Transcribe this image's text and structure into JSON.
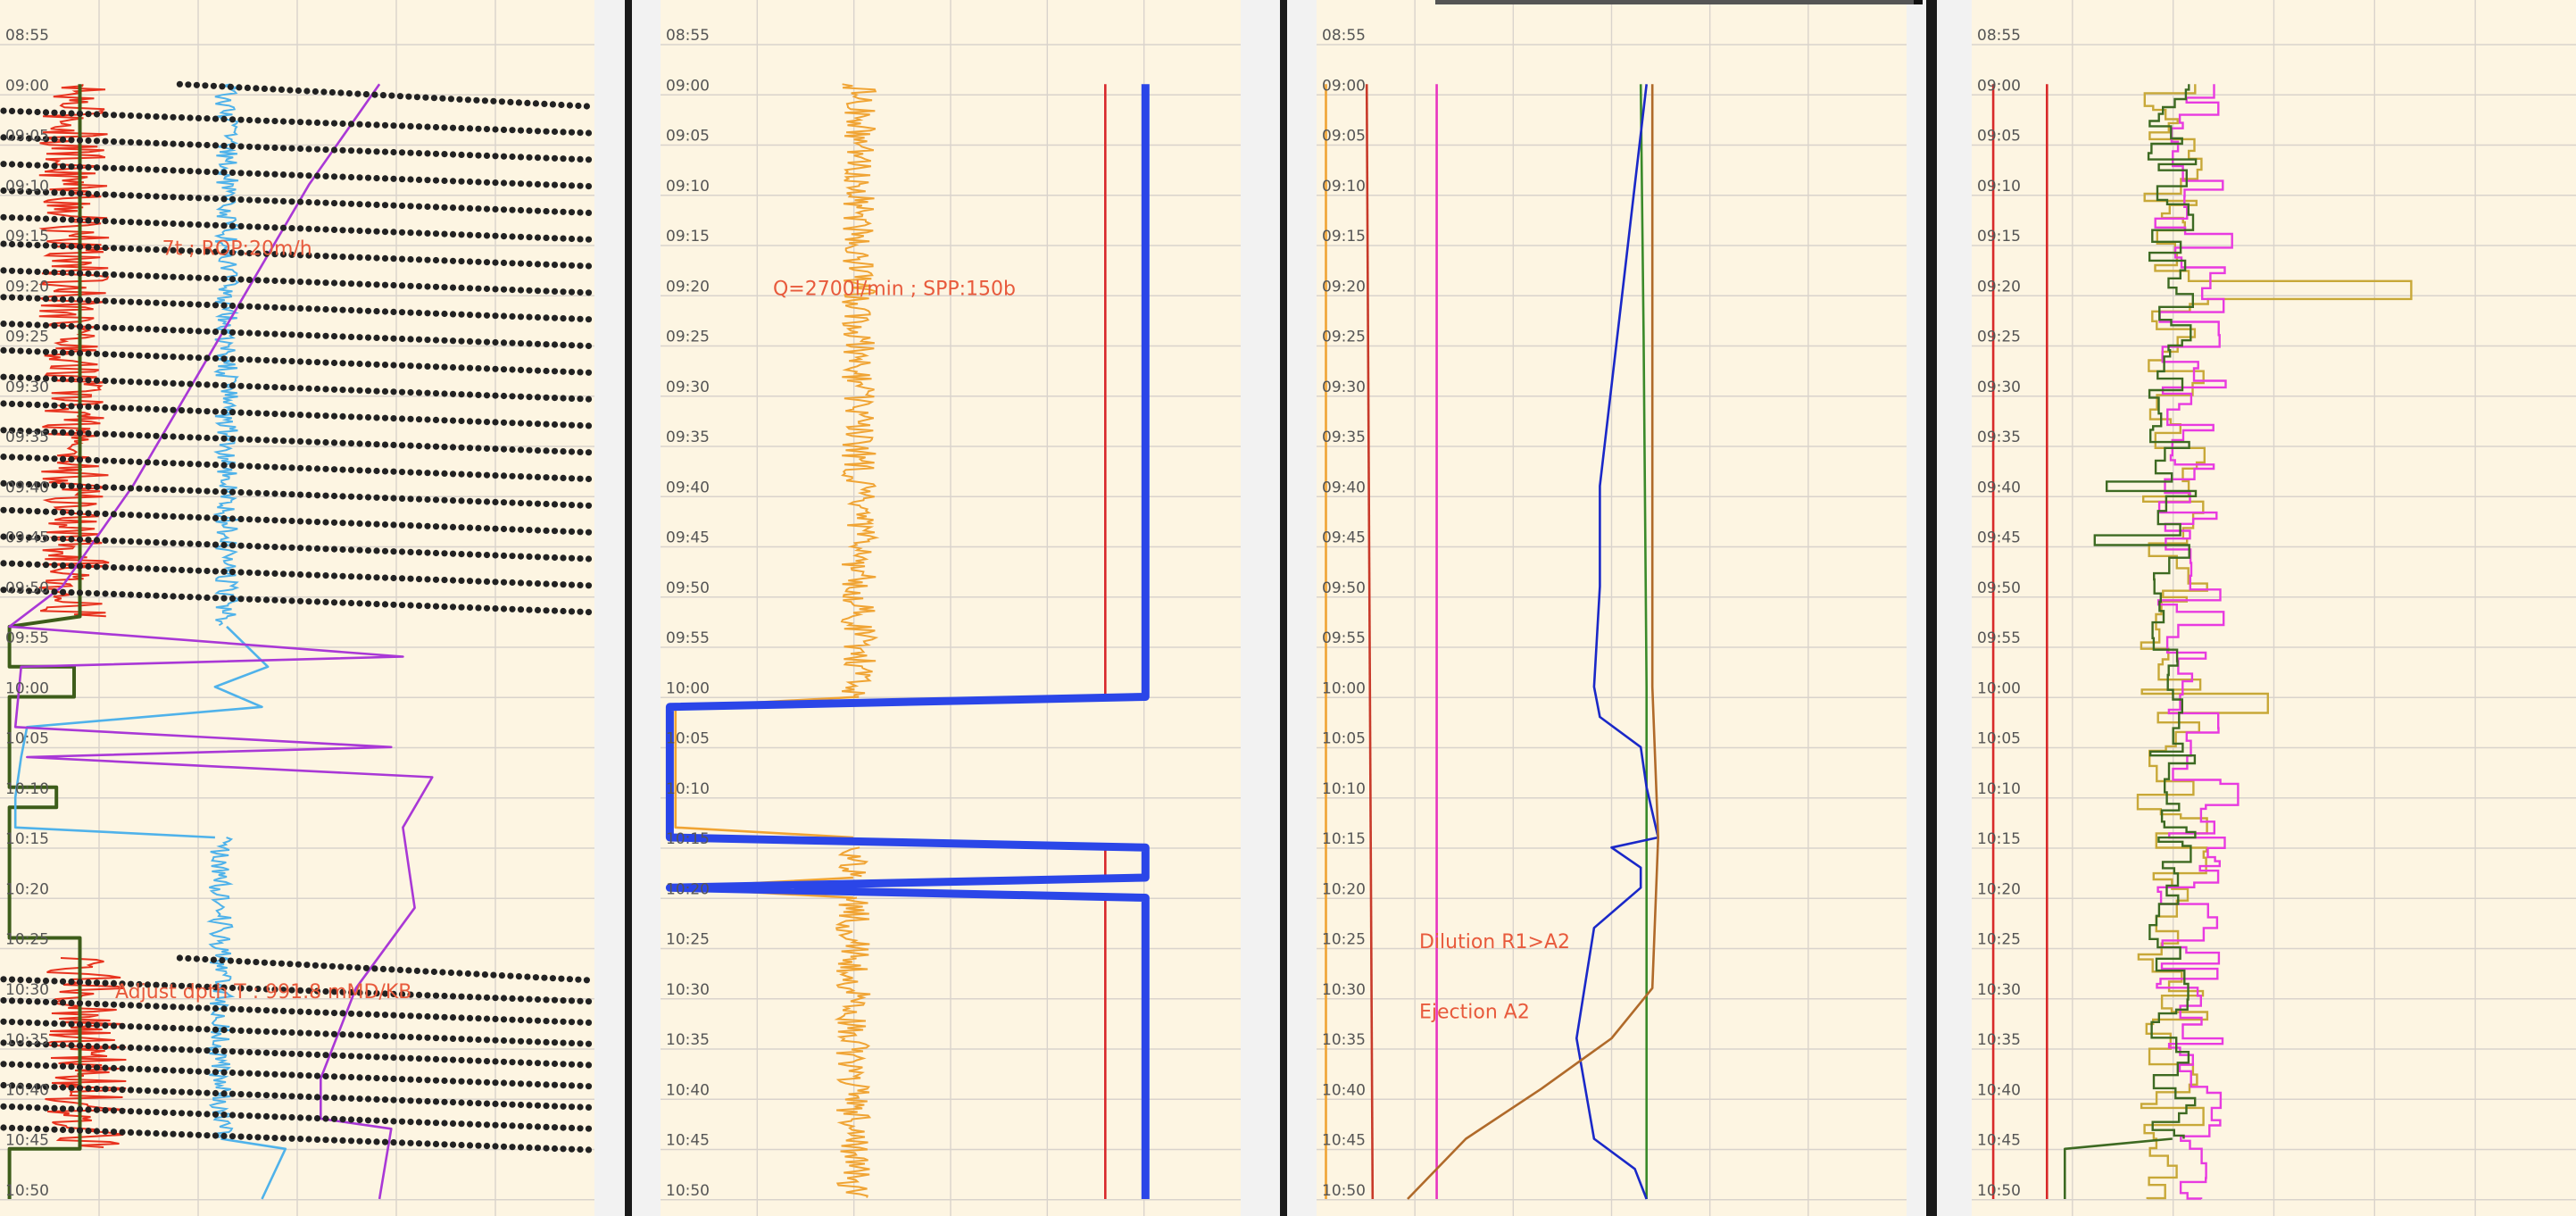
{
  "chart_data": [
    {
      "type": "line",
      "track": 1,
      "y_axis": "time",
      "ylim": [
        "08:55",
        "10:51"
      ],
      "ticks": [
        "08:55",
        "09:00",
        "09:05",
        "09:10",
        "09:15",
        "09:20",
        "09:25",
        "09:30",
        "09:35",
        "09:40",
        "09:45",
        "09:50",
        "09:55",
        "10:00",
        "10:05",
        "10:10",
        "10:15",
        "10:20",
        "10:25",
        "10:30",
        "10:35",
        "10:40",
        "10:45",
        "10:50"
      ],
      "grid": true,
      "xlim": [
        0,
        100
      ],
      "annotations": [
        {
          "text": "7t ; ROP:20m/h",
          "time": "09:17",
          "x": 27,
          "color": "#e85a3c"
        },
        {
          "text": "Adjust dpth T : 991.8 mMD/KB",
          "time": "10:31",
          "x": 19,
          "color": "#e85a3c"
        }
      ],
      "series": [
        {
          "color": "#e8321e",
          "style": "noisy",
          "segments": [
            {
              "start": "09:00",
              "end": "09:53",
              "x": 12,
              "amp": 6
            },
            {
              "start": "10:27",
              "end": "10:46",
              "x": 14,
              "amp": 7
            }
          ]
        },
        {
          "color": "#3d5d1a",
          "style": "step",
          "points": [
            [
              "09:00",
              13
            ],
            [
              "09:53",
              13
            ],
            [
              "09:54",
              1
            ],
            [
              "09:58",
              1
            ],
            [
              "09:58",
              12
            ],
            [
              "10:01",
              12
            ],
            [
              "10:01",
              1
            ],
            [
              "10:10",
              1
            ],
            [
              "10:10",
              9
            ],
            [
              "10:12",
              9
            ],
            [
              "10:12",
              1
            ],
            [
              "10:25",
              1
            ],
            [
              "10:25",
              13
            ],
            [
              "10:46",
              13
            ],
            [
              "10:46",
              1
            ],
            [
              "10:51",
              1
            ]
          ]
        },
        {
          "color": "#4fb2ea",
          "style": "noisy",
          "segments": [
            {
              "start": "09:00",
              "end": "09:54",
              "x": 38,
              "amp": 2
            },
            {
              "start": "10:15",
              "end": "10:45",
              "x": 37,
              "amp": 2
            }
          ]
        },
        {
          "color": "#4fb2ea",
          "style": "line",
          "points": [
            [
              "09:54",
              38
            ],
            [
              "09:58",
              45
            ],
            [
              "10:00",
              36
            ],
            [
              "10:02",
              44
            ],
            [
              "10:04",
              4
            ],
            [
              "10:07",
              3
            ],
            [
              "10:11",
              2
            ],
            [
              "10:14",
              2
            ],
            [
              "10:15",
              36
            ]
          ]
        },
        {
          "color": "#4fb2ea",
          "style": "line",
          "points": [
            [
              "10:45",
              37
            ],
            [
              "10:46",
              48
            ],
            [
              "10:51",
              44
            ]
          ]
        },
        {
          "color": "#a938d6",
          "style": "line",
          "points": [
            [
              "09:00",
              64
            ],
            [
              "09:10",
              52
            ],
            [
              "09:20",
              42
            ],
            [
              "09:30",
              32
            ],
            [
              "09:40",
              22
            ],
            [
              "09:50",
              10
            ],
            [
              "09:54",
              1
            ],
            [
              "09:57",
              68
            ],
            [
              "09:58",
              3
            ],
            [
              "10:04",
              2
            ],
            [
              "10:06",
              66
            ],
            [
              "10:07",
              4
            ],
            [
              "10:09",
              73
            ],
            [
              "10:14",
              68
            ],
            [
              "10:22",
              70
            ],
            [
              "10:30",
              60
            ],
            [
              "10:39",
              54
            ],
            [
              "10:43",
              54
            ],
            [
              "10:44",
              66
            ],
            [
              "10:51",
              64
            ]
          ]
        },
        {
          "color": "#222222",
          "style": "dots",
          "segments": [
            {
              "start": "09:00",
              "end": "09:53",
              "rows": 20,
              "xstart": 0,
              "xend": 100,
              "slope": 2.5
            },
            {
              "start": "10:27",
              "end": "10:46",
              "rows": 9,
              "xstart": 0,
              "xend": 100,
              "slope": 2.5
            }
          ]
        }
      ]
    },
    {
      "type": "line",
      "track": 2,
      "y_axis": "time",
      "ylim": [
        "08:55",
        "10:51"
      ],
      "ticks": [
        "08:55",
        "09:00",
        "09:05",
        "09:10",
        "09:15",
        "09:20",
        "09:25",
        "09:30",
        "09:35",
        "09:40",
        "09:45",
        "09:50",
        "09:55",
        "10:00",
        "10:05",
        "10:10",
        "10:15",
        "10:20",
        "10:25",
        "10:30",
        "10:35",
        "10:40",
        "10:45",
        "10:50"
      ],
      "grid": true,
      "xlim": [
        0,
        100
      ],
      "annotations": [
        {
          "text": "Q=2700l/min ; SPP:150b",
          "time": "09:21",
          "x": 19,
          "color": "#e85a3c"
        }
      ],
      "series": [
        {
          "color": "#f0a434",
          "style": "noisy",
          "segments": [
            {
              "start": "09:00",
              "end": "10:01",
              "x": 34,
              "amp": 3
            },
            {
              "start": "10:16",
              "end": "10:19",
              "x": 33,
              "amp": 3
            },
            {
              "start": "10:21",
              "end": "10:51",
              "x": 33,
              "amp": 3
            }
          ]
        },
        {
          "color": "#f0a434",
          "style": "line",
          "points": [
            [
              "10:01",
              34
            ],
            [
              "10:02",
              2
            ],
            [
              "10:14",
              2
            ],
            [
              "10:15",
              33
            ]
          ]
        },
        {
          "color": "#f0a434",
          "style": "line",
          "points": [
            [
              "10:19",
              33
            ],
            [
              "10:20",
              1
            ],
            [
              "10:21",
              33
            ]
          ]
        },
        {
          "color": "#d8282c",
          "style": "line",
          "points": [
            [
              "09:00",
              77
            ],
            [
              "10:01",
              77
            ],
            [
              "10:02",
              1
            ],
            [
              "10:15",
              1
            ],
            [
              "10:16",
              77
            ],
            [
              "10:19",
              77
            ],
            [
              "10:20",
              1
            ],
            [
              "10:21",
              77
            ],
            [
              "10:51",
              77
            ]
          ]
        },
        {
          "color": "#2b46e8",
          "style": "band",
          "points": [
            [
              "09:00",
              84
            ],
            [
              "10:01",
              84
            ],
            [
              "10:02",
              1
            ],
            [
              "10:15",
              1
            ],
            [
              "10:16",
              84
            ],
            [
              "10:19",
              84
            ],
            [
              "10:20",
              1
            ],
            [
              "10:21",
              84
            ],
            [
              "10:51",
              84
            ]
          ]
        }
      ]
    },
    {
      "type": "line",
      "track": 3,
      "y_axis": "time",
      "ylim": [
        "08:55",
        "10:51"
      ],
      "ticks": [
        "08:55",
        "09:00",
        "09:05",
        "09:10",
        "09:15",
        "09:20",
        "09:25",
        "09:30",
        "09:35",
        "09:40",
        "09:45",
        "09:50",
        "09:55",
        "10:00",
        "10:05",
        "10:10",
        "10:15",
        "10:20",
        "10:25",
        "10:30",
        "10:35",
        "10:40",
        "10:45",
        "10:50"
      ],
      "grid": true,
      "xlim": [
        0,
        100
      ],
      "annotations": [
        {
          "text": "Dilution R1>A2",
          "time": "10:26",
          "x": 17,
          "color": "#e85a3c"
        },
        {
          "text": "Ejection A2",
          "time": "10:33",
          "x": 17,
          "color": "#e85a3c"
        }
      ],
      "series": [
        {
          "color": "#f0a434",
          "style": "line",
          "points": [
            [
              "09:00",
              1
            ],
            [
              "10:51",
              1
            ]
          ]
        },
        {
          "color": "#c83a2a",
          "style": "line",
          "points": [
            [
              "09:00",
              8
            ],
            [
              "10:51",
              9
            ]
          ]
        },
        {
          "color": "#e835c0",
          "style": "line",
          "points": [
            [
              "09:00",
              20
            ],
            [
              "10:51",
              20
            ]
          ]
        },
        {
          "color": "#3a8a2a",
          "style": "line",
          "points": [
            [
              "09:00",
              55
            ],
            [
              "09:25",
              55.5
            ],
            [
              "10:00",
              56
            ],
            [
              "10:51",
              56
            ]
          ]
        },
        {
          "color": "#1a28c8",
          "style": "line",
          "points": [
            [
              "09:00",
              56
            ],
            [
              "09:10",
              54
            ],
            [
              "09:20",
              52
            ],
            [
              "09:30",
              50
            ],
            [
              "09:40",
              48
            ],
            [
              "09:50",
              48
            ],
            [
              "10:00",
              47
            ],
            [
              "10:03",
              48
            ],
            [
              "10:06",
              55
            ],
            [
              "10:10",
              56
            ],
            [
              "10:15",
              58
            ],
            [
              "10:16",
              50
            ],
            [
              "10:18",
              55
            ],
            [
              "10:20",
              55
            ],
            [
              "10:24",
              47
            ],
            [
              "10:35",
              44
            ],
            [
              "10:45",
              47
            ],
            [
              "10:48",
              54
            ],
            [
              "10:51",
              56
            ]
          ]
        },
        {
          "color": "#b06a2a",
          "style": "line",
          "points": [
            [
              "09:00",
              57
            ],
            [
              "09:30",
              57
            ],
            [
              "10:00",
              57
            ],
            [
              "10:15",
              58
            ],
            [
              "10:30",
              57
            ],
            [
              "10:35",
              50
            ],
            [
              "10:40",
              38
            ],
            [
              "10:45",
              25
            ],
            [
              "10:51",
              15
            ]
          ]
        }
      ]
    },
    {
      "type": "line",
      "track": 4,
      "y_axis": "time",
      "ylim": [
        "08:55",
        "10:51"
      ],
      "ticks": [
        "08:55",
        "09:00",
        "09:05",
        "09:10",
        "09:15",
        "09:20",
        "09:25",
        "09:30",
        "09:35",
        "09:40",
        "09:45",
        "09:50",
        "09:55",
        "10:00",
        "10:05",
        "10:10",
        "10:15",
        "10:20",
        "10:25",
        "10:30",
        "10:35",
        "10:40",
        "10:45",
        "10:50"
      ],
      "grid": true,
      "xlim": [
        0,
        100
      ],
      "annotations": [],
      "series": [
        {
          "color": "#d82a2a",
          "style": "line",
          "points": [
            [
              "09:00",
              3
            ],
            [
              "10:51",
              3
            ]
          ]
        },
        {
          "color": "#d82a2a",
          "style": "line",
          "points": [
            [
              "09:00",
              12
            ],
            [
              "10:51",
              12
            ]
          ]
        },
        {
          "color": "#c8a838",
          "style": "steps",
          "segments": [
            {
              "start": "09:00",
              "end": "10:51",
              "x": 33,
              "amp": 6,
              "spikes": [
                [
                  "09:20",
                  73
                ],
                [
                  "10:01",
                  49
                ]
              ]
            }
          ]
        },
        {
          "color": "#e83ae0",
          "style": "steps",
          "segments": [
            {
              "start": "09:00",
              "end": "10:51",
              "x": 36,
              "amp": 6,
              "spikes": [
                [
                  "09:15",
                  43
                ],
                [
                  "10:10",
                  44
                ]
              ]
            }
          ]
        },
        {
          "color": "#3d6a22",
          "style": "steps",
          "segments": [
            {
              "start": "09:00",
              "end": "10:45",
              "x": 33,
              "amp": 4,
              "spikes": [
                [
                  "09:45",
                  20
                ],
                [
                  "09:40",
                  22
                ]
              ]
            }
          ]
        },
        {
          "color": "#3d6a22",
          "style": "line",
          "points": [
            [
              "10:45",
              33
            ],
            [
              "10:46",
              15
            ],
            [
              "10:51",
              15
            ]
          ]
        }
      ]
    }
  ]
}
